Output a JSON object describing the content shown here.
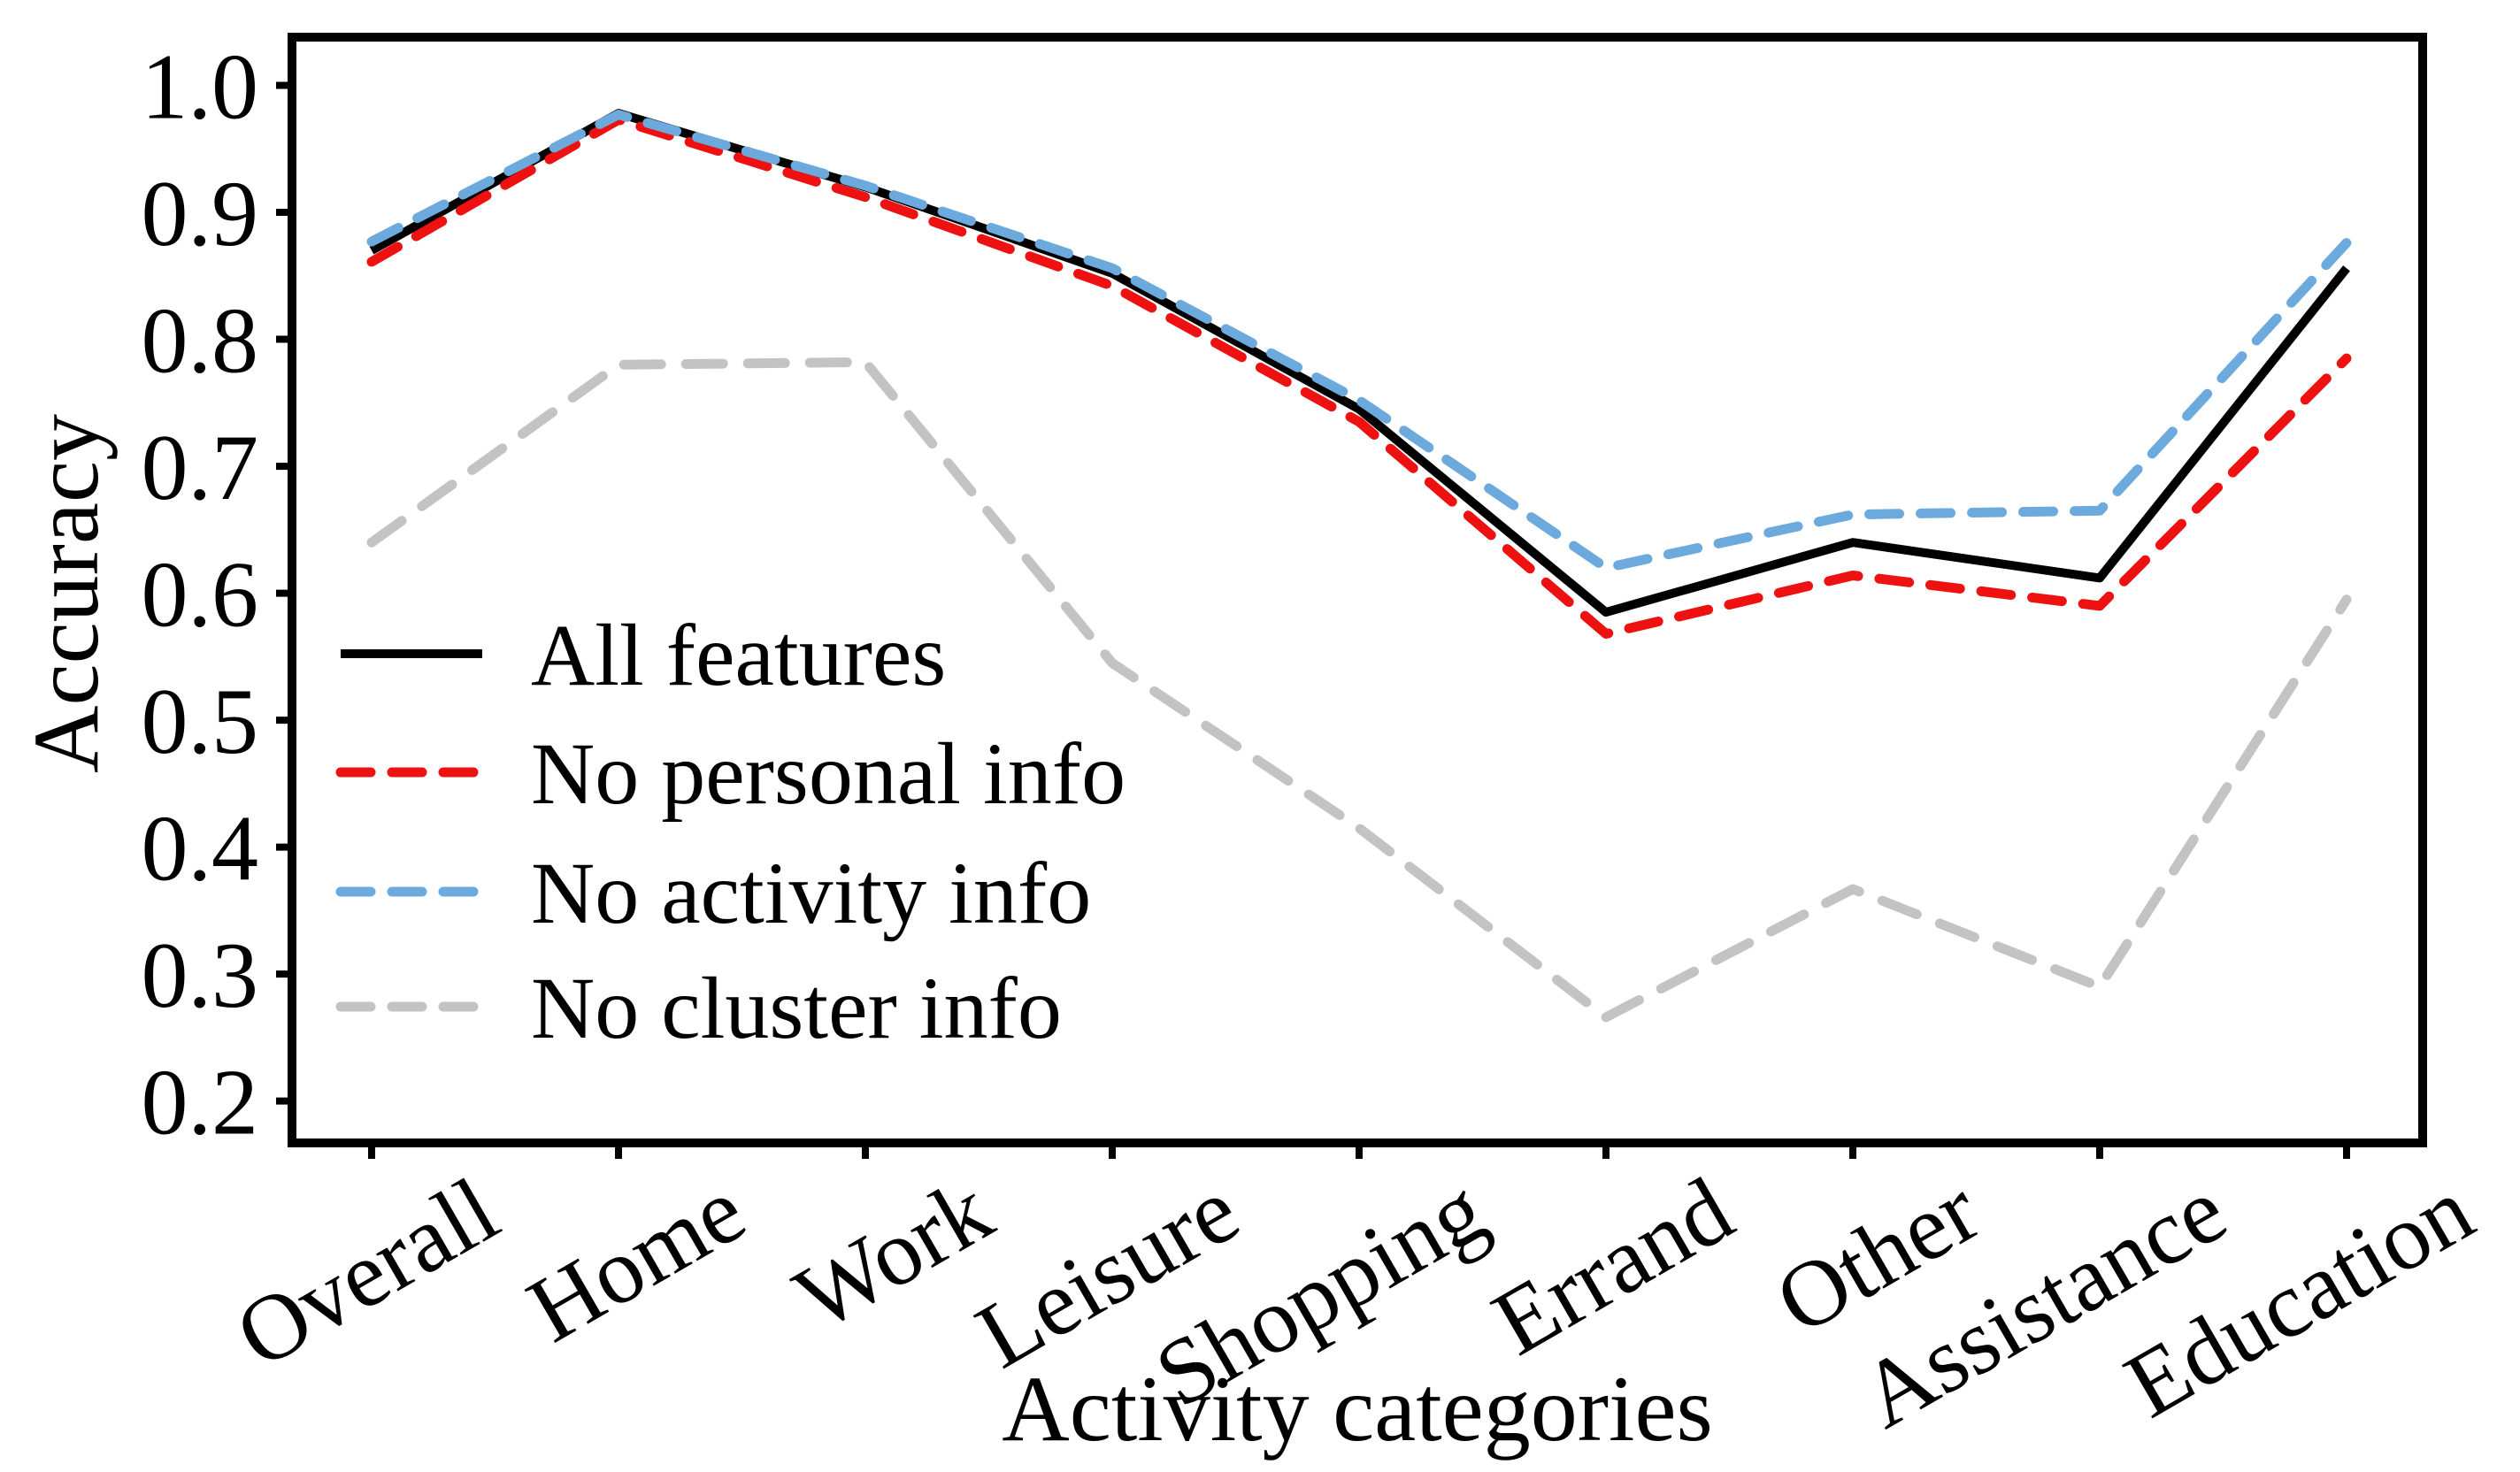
{
  "chart_data": {
    "type": "line",
    "title": "",
    "xlabel": "Activity categories",
    "ylabel": "Accuracy",
    "categories": [
      "Overall",
      "Home",
      "Work",
      "Leisure",
      "Shopping",
      "Errand",
      "Other",
      "Assistance",
      "Education"
    ],
    "ylim": [
      0.167,
      1.038
    ],
    "yticks": [
      {
        "value": 1.0,
        "label": "1.0"
      },
      {
        "value": 0.9,
        "label": "0.9"
      },
      {
        "value": 0.8,
        "label": "0.8"
      },
      {
        "value": 0.7,
        "label": "0.7"
      },
      {
        "value": 0.6,
        "label": "0.6"
      },
      {
        "value": 0.5,
        "label": "0.5"
      },
      {
        "value": 0.4,
        "label": "0.4"
      },
      {
        "value": 0.3,
        "label": "0.3"
      },
      {
        "value": 0.2,
        "label": "0.2"
      }
    ],
    "grid": false,
    "legend_position": "center-left-inside",
    "series": [
      {
        "name": "All features",
        "color": "#000000",
        "dashed": false,
        "values": [
          0.87,
          0.978,
          0.92,
          0.852,
          0.745,
          0.585,
          0.64,
          0.612,
          0.856
        ]
      },
      {
        "name": "No personal info",
        "color": "#ee1111",
        "dashed": true,
        "values": [
          0.861,
          0.973,
          0.912,
          0.842,
          0.735,
          0.568,
          0.614,
          0.59,
          0.785
        ]
      },
      {
        "name": "No activity info",
        "color": "#6ca9dc",
        "dashed": true,
        "values": [
          0.877,
          0.977,
          0.921,
          0.856,
          0.752,
          0.62,
          0.662,
          0.665,
          0.876
        ]
      },
      {
        "name": "No cluster info",
        "color": "#c3c3c3",
        "dashed": true,
        "values": [
          0.64,
          0.78,
          0.782,
          0.545,
          0.415,
          0.266,
          0.367,
          0.29,
          0.595
        ]
      }
    ]
  }
}
